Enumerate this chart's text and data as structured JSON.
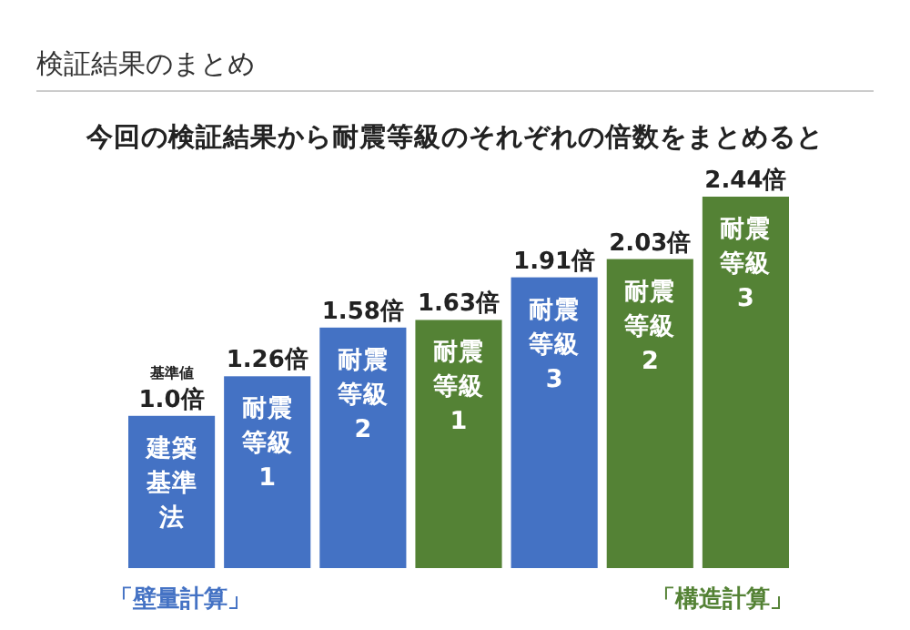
{
  "chart_data": {
    "type": "bar",
    "title": "検証結果のまとめ",
    "subtitle": "今回の検証結果から耐震等級のそれぞれの倍数をまとめると",
    "categories": [
      "建築基準法",
      "耐震等級1",
      "耐震等級2",
      "耐震等級1",
      "耐震等級3",
      "耐震等級2",
      "耐震等級3"
    ],
    "values": [
      1.0,
      1.26,
      1.58,
      1.63,
      1.91,
      2.03,
      2.44
    ],
    "value_labels": [
      "1.0倍",
      "1.26倍",
      "1.58倍",
      "1.63倍",
      "1.91倍",
      "2.03倍",
      "2.44倍"
    ],
    "colors": [
      "#4472c4",
      "#4472c4",
      "#4472c4",
      "#548235",
      "#4472c4",
      "#548235",
      "#548235"
    ],
    "annotations": [
      {
        "text": "基準値",
        "x": "建築基準法",
        "y": 1.0
      },
      "「壁量計算」",
      "「構造計算」"
    ]
  }
}
